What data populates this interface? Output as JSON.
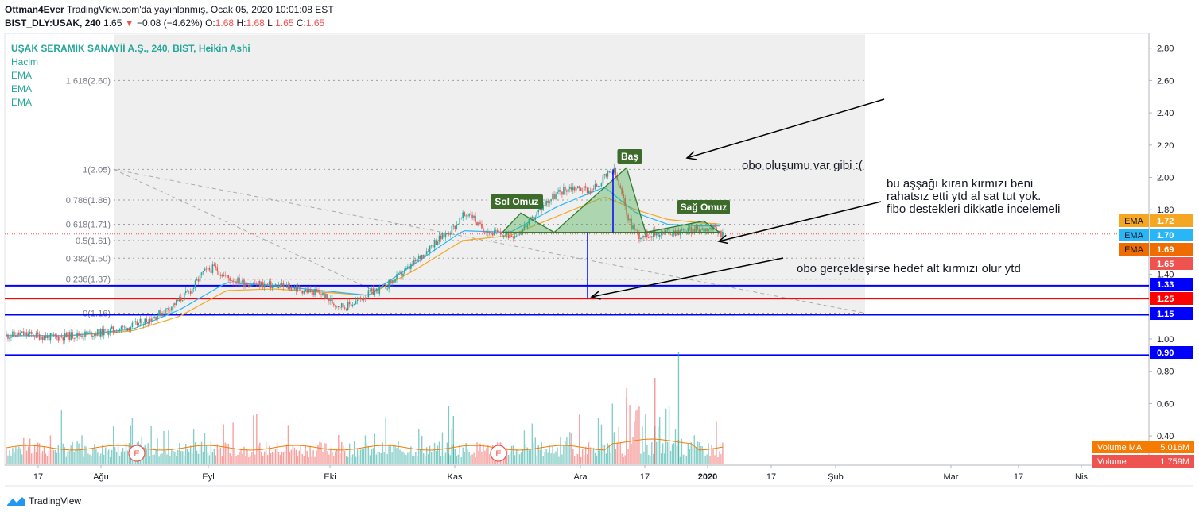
{
  "header": {
    "publisher": "Ottman4Ever",
    "published_text": "TradingView.com'da yayınlanmış, Ocak 05, 2020 10:01:08 EST",
    "symbol": "BIST_DLY:USAK, 240",
    "last": "1.65",
    "change": "−0.08 (−4.62%)",
    "o_label": "O:",
    "o_val": "1.68",
    "h_label": "H:",
    "h_val": "1.68",
    "l_label": "L:",
    "l_val": "1.65",
    "c_label": "C:",
    "c_val": "1.65"
  },
  "legend": {
    "title": "UŞAK SERAMİK SANAYİİ A.Ş., 240, BIST, Heikin Ashi",
    "items": [
      "Hacim",
      "EMA",
      "EMA",
      "EMA"
    ]
  },
  "brand": {
    "name": "TradingView"
  },
  "colors": {
    "up": "#26a69a",
    "down": "#ef5350",
    "ema_fast": "#f5a623",
    "ema_slow": "#29b6f6",
    "blue_line": "#0000ff",
    "red_line": "#ff0000",
    "pattern_fill": "#4caf50",
    "pattern_label": "#3d6b2b"
  },
  "chart_data": {
    "type": "candlestick",
    "price_axis": {
      "ticks": [
        "2.80",
        "2.60",
        "2.40",
        "2.20",
        "2.00",
        "1.80",
        "1.40",
        "1.00",
        "0.80",
        "0.60",
        "0.40"
      ]
    },
    "time_axis": {
      "ticks": [
        "17",
        "Ağu",
        "Eyl",
        "Eki",
        "Kas",
        "Ara",
        "17",
        "2020",
        "17",
        "Şub",
        "Mar",
        "17",
        "Nis"
      ]
    },
    "price_labels": [
      {
        "label": "EMA",
        "value": "1.72",
        "color": "#f5a623"
      },
      {
        "label": "EMA",
        "value": "1.70",
        "color": "#29b6f6"
      },
      {
        "label": "EMA",
        "value": "1.69",
        "color": "#ef6c00"
      },
      {
        "label": "",
        "value": "1.65",
        "color": "#ef5350"
      },
      {
        "label": "",
        "value": "1.33",
        "color": "#0000ff"
      },
      {
        "label": "",
        "value": "1.25",
        "color": "#ff0000"
      },
      {
        "label": "",
        "value": "1.15",
        "color": "#0000ff"
      },
      {
        "label": "",
        "value": "0.90",
        "color": "#0000ff"
      }
    ],
    "volume_labels": [
      {
        "label": "Volume MA",
        "value": "5.016M",
        "color": "#f57c00"
      },
      {
        "label": "Volume",
        "value": "1.759M",
        "color": "#ef5350"
      }
    ],
    "fib_levels": [
      {
        "label": "1.618(2.60)",
        "price": 2.6
      },
      {
        "label": "1(2.05)",
        "price": 2.05
      },
      {
        "label": "0.786(1.86)",
        "price": 1.86
      },
      {
        "label": "0.618(1.71)",
        "price": 1.71
      },
      {
        "label": "0.5(1.61)",
        "price": 1.61
      },
      {
        "label": "0.382(1.50)",
        "price": 1.5
      },
      {
        "label": "0.236(1.37)",
        "price": 1.37
      },
      {
        "label": "0(1.16)",
        "price": 1.16
      }
    ],
    "horizontal_lines": [
      {
        "price": 1.33,
        "color": "#0000ff"
      },
      {
        "price": 1.25,
        "color": "#ff0000"
      },
      {
        "price": 1.15,
        "color": "#0000ff"
      },
      {
        "price": 0.9,
        "color": "#0000ff"
      }
    ],
    "pattern_labels": [
      "Sol Omuz",
      "Baş",
      "Sağ Omuz"
    ],
    "annotations": [
      "obo oluşumu var gibi :(",
      "bu aşşağı kıran kırmızı beni",
      "rahatsız etti ytd al sat tut yok.",
      "fibo destekleri dikkatle incelemeli",
      "obo gerçekleşirse hedef alt kırmızı olur ytd"
    ],
    "event_markers": [
      "E",
      "E"
    ],
    "price_path": [
      [
        0,
        1.02
      ],
      [
        10,
        1.03
      ],
      [
        20,
        1.02
      ],
      [
        30,
        1.01
      ],
      [
        40,
        1.02
      ],
      [
        50,
        1.03
      ],
      [
        60,
        1.04
      ],
      [
        70,
        1.06
      ],
      [
        80,
        1.08
      ],
      [
        90,
        1.12
      ],
      [
        100,
        1.17
      ],
      [
        110,
        1.24
      ],
      [
        118,
        1.31
      ],
      [
        125,
        1.41
      ],
      [
        132,
        1.44
      ],
      [
        140,
        1.38
      ],
      [
        150,
        1.35
      ],
      [
        160,
        1.34
      ],
      [
        170,
        1.33
      ],
      [
        180,
        1.32
      ],
      [
        190,
        1.3
      ],
      [
        200,
        1.28
      ],
      [
        208,
        1.22
      ],
      [
        215,
        1.2
      ],
      [
        222,
        1.23
      ],
      [
        230,
        1.28
      ],
      [
        240,
        1.32
      ],
      [
        248,
        1.38
      ],
      [
        256,
        1.44
      ],
      [
        264,
        1.52
      ],
      [
        272,
        1.6
      ],
      [
        278,
        1.64
      ],
      [
        285,
        1.7
      ],
      [
        290,
        1.76
      ],
      [
        295,
        1.78
      ],
      [
        300,
        1.7
      ],
      [
        308,
        1.66
      ],
      [
        318,
        1.64
      ],
      [
        326,
        1.66
      ],
      [
        334,
        1.74
      ],
      [
        342,
        1.84
      ],
      [
        350,
        1.9
      ],
      [
        358,
        1.94
      ],
      [
        366,
        1.93
      ],
      [
        372,
        1.92
      ],
      [
        380,
        2.0
      ],
      [
        386,
        2.04
      ],
      [
        390,
        1.92
      ],
      [
        396,
        1.72
      ],
      [
        402,
        1.64
      ],
      [
        410,
        1.65
      ],
      [
        420,
        1.66
      ],
      [
        430,
        1.67
      ],
      [
        440,
        1.68
      ],
      [
        446,
        1.69
      ],
      [
        452,
        1.66
      ],
      [
        455,
        1.65
      ]
    ],
    "ema_orange_path": [
      [
        0,
        1.02
      ],
      [
        40,
        1.02
      ],
      [
        80,
        1.05
      ],
      [
        110,
        1.14
      ],
      [
        140,
        1.3
      ],
      [
        170,
        1.31
      ],
      [
        200,
        1.29
      ],
      [
        230,
        1.27
      ],
      [
        260,
        1.43
      ],
      [
        290,
        1.61
      ],
      [
        320,
        1.64
      ],
      [
        350,
        1.76
      ],
      [
        380,
        1.88
      ],
      [
        400,
        1.8
      ],
      [
        420,
        1.74
      ],
      [
        440,
        1.72
      ],
      [
        455,
        1.71
      ]
    ],
    "ema_blue_path": [
      [
        0,
        1.02
      ],
      [
        40,
        1.02
      ],
      [
        80,
        1.06
      ],
      [
        110,
        1.18
      ],
      [
        140,
        1.35
      ],
      [
        170,
        1.33
      ],
      [
        200,
        1.3
      ],
      [
        230,
        1.27
      ],
      [
        260,
        1.47
      ],
      [
        290,
        1.67
      ],
      [
        320,
        1.66
      ],
      [
        350,
        1.82
      ],
      [
        380,
        1.94
      ],
      [
        400,
        1.78
      ],
      [
        420,
        1.71
      ],
      [
        440,
        1.7
      ],
      [
        455,
        1.7
      ]
    ]
  }
}
